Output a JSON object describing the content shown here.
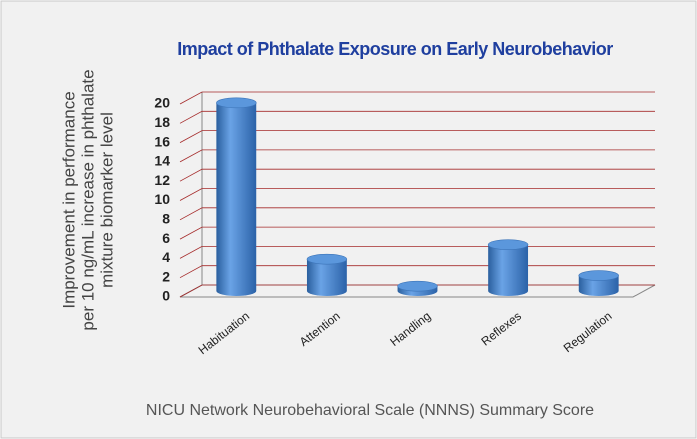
{
  "chart_data": {
    "type": "bar",
    "title": "Impact of Phthalate Exposure on Early Neurobehavior",
    "y_axis_label": [
      "Improvement in performance",
      "per 10 ng/mL increase in phthalate",
      "mixture biomarker level"
    ],
    "x_axis_label": "NICU Network Neurobehavioral Scale (NNNS) Summary Score",
    "categories": [
      "Habituation",
      "Attention",
      "Handling",
      "Reflexes",
      "Regulation"
    ],
    "values": [
      19.5,
      3.3,
      0.5,
      4.8,
      1.6
    ],
    "color": "#3f7fca",
    "ylim": [
      0,
      20
    ],
    "yticks": [
      0,
      2,
      4,
      6,
      8,
      10,
      12,
      14,
      16,
      18,
      20
    ],
    "grid": true
  }
}
